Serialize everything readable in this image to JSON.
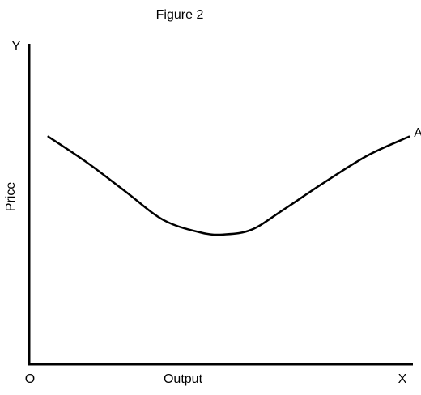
{
  "chart_data": {
    "type": "line",
    "title": "Figure 2",
    "xlabel": "Output",
    "ylabel": "Price",
    "origin_label": "O",
    "x_axis_letter": "X",
    "y_axis_letter": "Y",
    "xlim": [
      0,
      100
    ],
    "ylim": [
      0,
      100
    ],
    "grid": false,
    "series": [
      {
        "name": "AC",
        "x": [
          5,
          15,
          25,
          35,
          45,
          51,
          58,
          66,
          76,
          88,
          99
        ],
        "y": [
          71,
          63,
          54,
          45,
          41,
          40.5,
          42,
          48,
          56,
          65,
          71
        ]
      }
    ]
  }
}
